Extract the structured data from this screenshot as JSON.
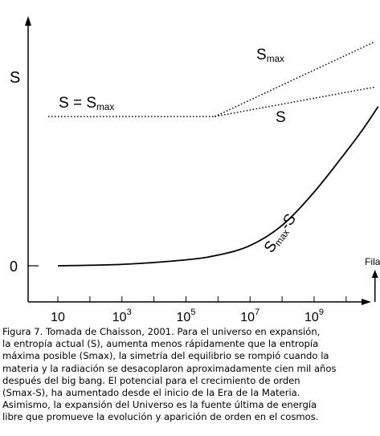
{
  "chart_data": {
    "type": "line",
    "ylabel": "S",
    "y_tick_labels": [
      "0"
    ],
    "x_tick_labels": [
      {
        "base": "10",
        "exp": ""
      },
      {
        "base": "10",
        "exp": "3"
      },
      {
        "base": "10",
        "exp": "5"
      },
      {
        "base": "10",
        "exp": "7"
      },
      {
        "base": "10",
        "exp": "9"
      }
    ],
    "x_ticks": [
      1,
      3,
      5,
      7,
      9
    ],
    "xlim": [
      0,
      11.2
    ],
    "ylim": [
      0,
      1
    ],
    "x_scale": "log10",
    "arrow_label": "Fila",
    "arrow_x": 10.9,
    "series": [
      {
        "name": "S = Smax",
        "label_main": "S = S",
        "label_sub": "max",
        "style": "dotted",
        "x": [
          0.7,
          5.9
        ],
        "y": [
          0.628,
          0.628
        ]
      },
      {
        "name": "Smax",
        "label_main": "S",
        "label_sub": "max",
        "style": "dotted",
        "x": [
          5.9,
          10.9
        ],
        "y": [
          0.628,
          0.943
        ]
      },
      {
        "name": "S",
        "label_main": "S",
        "label_sub": "",
        "style": "dotted",
        "x": [
          5.9,
          10.9
        ],
        "y": [
          0.628,
          0.752
        ]
      },
      {
        "name": "Smax -S",
        "label_main": "S",
        "label_sub": "max",
        "label_tail": "-S",
        "style": "solid",
        "x": [
          1,
          3,
          5,
          6,
          7,
          8,
          9,
          10,
          10.5,
          11
        ],
        "y": [
          0.0,
          0.006,
          0.025,
          0.045,
          0.085,
          0.17,
          0.31,
          0.48,
          0.57,
          0.67
        ]
      }
    ]
  },
  "caption": {
    "lines": [
      "Figura 7. Tomada de Chaisson, 2001. Para el universo en expansión,",
      "la entropía actual (S), aumenta menos rápidamente que la entropía",
      "máxima posible (Smax), la simetría del equilibrio se rompió cuando la",
      "materia y la radiación se desacoplaron aproximadamente cien mil años",
      "después del big bang. El potencial para el crecimiento de orden",
      "(Smax-S), ha aumentado desde el inicio de la Era de la Materia.",
      "Asimismo, la expansión del Universo es la fuente última de energía",
      "libre que promueve la evolución y aparición de orden en el cosmos."
    ]
  }
}
